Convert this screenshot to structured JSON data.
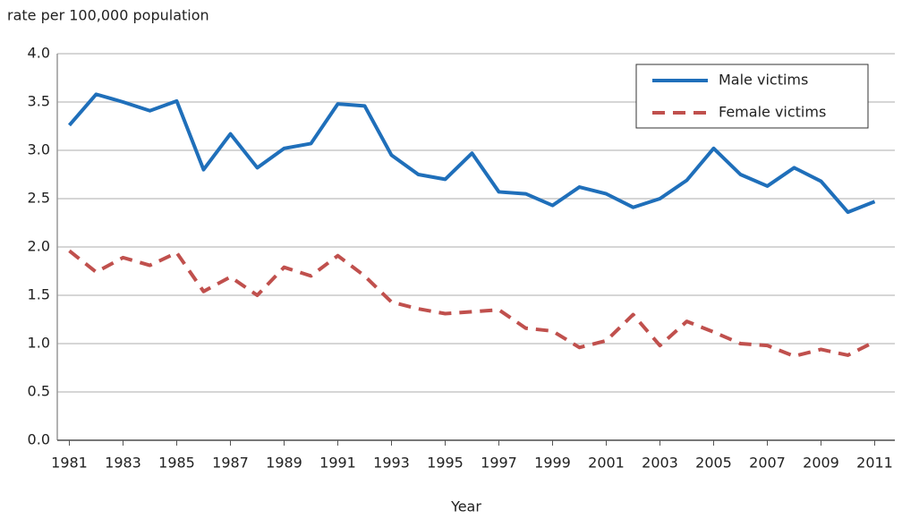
{
  "chart_data": {
    "type": "line",
    "y_label": "rate per 100,000 population",
    "x_label": "Year",
    "x": [
      1981,
      1982,
      1983,
      1984,
      1985,
      1986,
      1987,
      1988,
      1989,
      1990,
      1991,
      1992,
      1993,
      1994,
      1995,
      1996,
      1997,
      1998,
      1999,
      2000,
      2001,
      2002,
      2003,
      2004,
      2005,
      2006,
      2007,
      2008,
      2009,
      2010,
      2011
    ],
    "series": [
      {
        "name": "Male victims",
        "color": "#1f6fba",
        "dash": false,
        "values": [
          3.26,
          3.58,
          3.5,
          3.41,
          3.51,
          2.8,
          3.17,
          2.82,
          3.02,
          3.07,
          3.48,
          3.46,
          2.95,
          2.75,
          2.7,
          2.97,
          2.57,
          2.55,
          2.43,
          2.62,
          2.55,
          2.41,
          2.5,
          2.69,
          3.02,
          2.75,
          2.63,
          2.82,
          2.68,
          2.36,
          2.47
        ]
      },
      {
        "name": "Female victims",
        "color": "#c0504d",
        "dash": true,
        "values": [
          1.96,
          1.74,
          1.89,
          1.81,
          1.94,
          1.54,
          1.69,
          1.5,
          1.79,
          1.7,
          1.91,
          1.7,
          1.43,
          1.36,
          1.31,
          1.33,
          1.35,
          1.16,
          1.13,
          0.96,
          1.03,
          1.3,
          0.98,
          1.23,
          1.12,
          1.0,
          0.98,
          0.87,
          0.94,
          0.88,
          1.02
        ]
      }
    ],
    "xlim": [
      1980.55,
      2011.75
    ],
    "xticks": [
      1981,
      1983,
      1985,
      1987,
      1989,
      1991,
      1993,
      1995,
      1997,
      1999,
      2001,
      2003,
      2005,
      2007,
      2009,
      2011
    ],
    "ylim": [
      0,
      4
    ],
    "yticks": [
      {
        "value": 0,
        "label": "0.0"
      },
      {
        "value": 0.5,
        "label": "0.5"
      },
      {
        "value": 1,
        "label": "1.0"
      },
      {
        "value": 1.5,
        "label": "1.5"
      },
      {
        "value": 2,
        "label": "2.0"
      },
      {
        "value": 2.5,
        "label": "2.5"
      },
      {
        "value": 3,
        "label": "3.0"
      },
      {
        "value": 3.5,
        "label": "3.5"
      },
      {
        "value": 4,
        "label": "4.0"
      }
    ],
    "grid": true,
    "legend": "upper right"
  }
}
